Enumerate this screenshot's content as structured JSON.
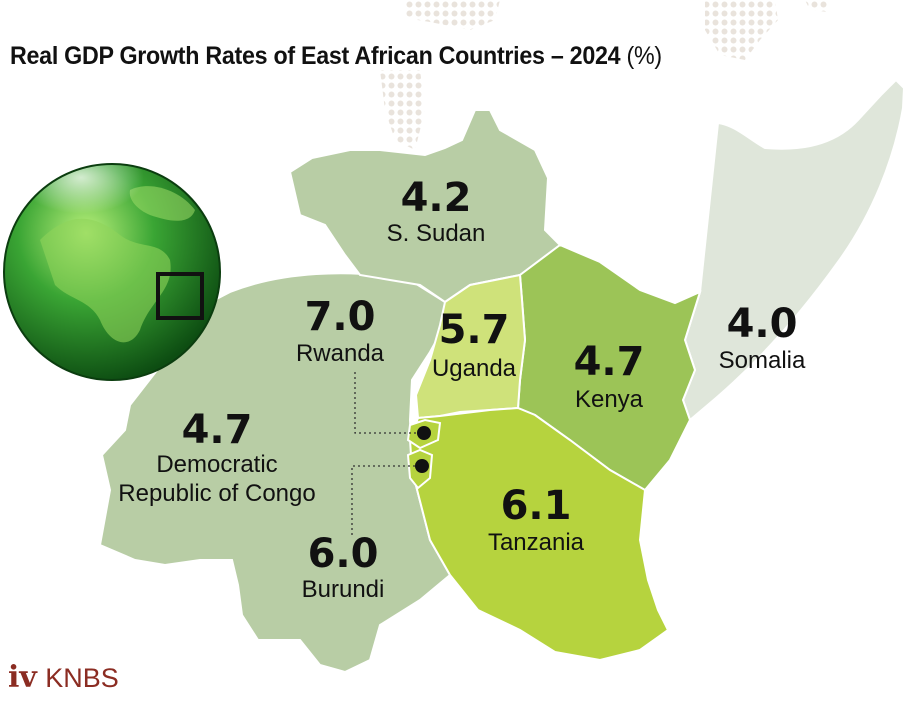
{
  "title": {
    "main": "Real GDP Growth Rates of East African Countries – 2024",
    "unit": "(%)"
  },
  "colors": {
    "light_region": "#b8cda5",
    "somalia": "#dfe6da",
    "uganda": "#cfe27a",
    "kenya": "#9cc457",
    "tanzania": "#b6d33e",
    "globe": "#2e8f2a",
    "text": "#111111",
    "brand": "#8b2c22"
  },
  "chart_data": {
    "type": "map",
    "title": "Real GDP Growth Rates of East African Countries – 2024 (%)",
    "unit": "%",
    "regions": [
      {
        "name": "S. Sudan",
        "value": "4.2"
      },
      {
        "name": "Rwanda",
        "value": "7.0"
      },
      {
        "name": "Uganda",
        "value": "5.7"
      },
      {
        "name": "Kenya",
        "value": "4.7"
      },
      {
        "name": "Somalia",
        "value": "4.0"
      },
      {
        "name": "Democratic Republic of Congo",
        "value": "4.7"
      },
      {
        "name": "Tanzania",
        "value": "6.1"
      },
      {
        "name": "Burundi",
        "value": "6.0"
      }
    ]
  },
  "labels": {
    "south_sudan": {
      "value": "4.2",
      "name": "S. Sudan"
    },
    "rwanda": {
      "value": "7.0",
      "name": "Rwanda"
    },
    "uganda": {
      "value": "5.7",
      "name": "Uganda"
    },
    "kenya": {
      "value": "4.7",
      "name": "Kenya"
    },
    "somalia": {
      "value": "4.0",
      "name": "Somalia"
    },
    "drc": {
      "value": "4.7",
      "name_line1": "Democratic",
      "name_line2": "Republic of Congo"
    },
    "tanzania": {
      "value": "6.1",
      "name": "Tanzania"
    },
    "burundi": {
      "value": "6.0",
      "name": "Burundi"
    }
  },
  "footer": {
    "page_number": "iv",
    "organization": "KNBS"
  },
  "icons": {
    "globe": "globe-icon",
    "square": "square-outline-icon"
  }
}
